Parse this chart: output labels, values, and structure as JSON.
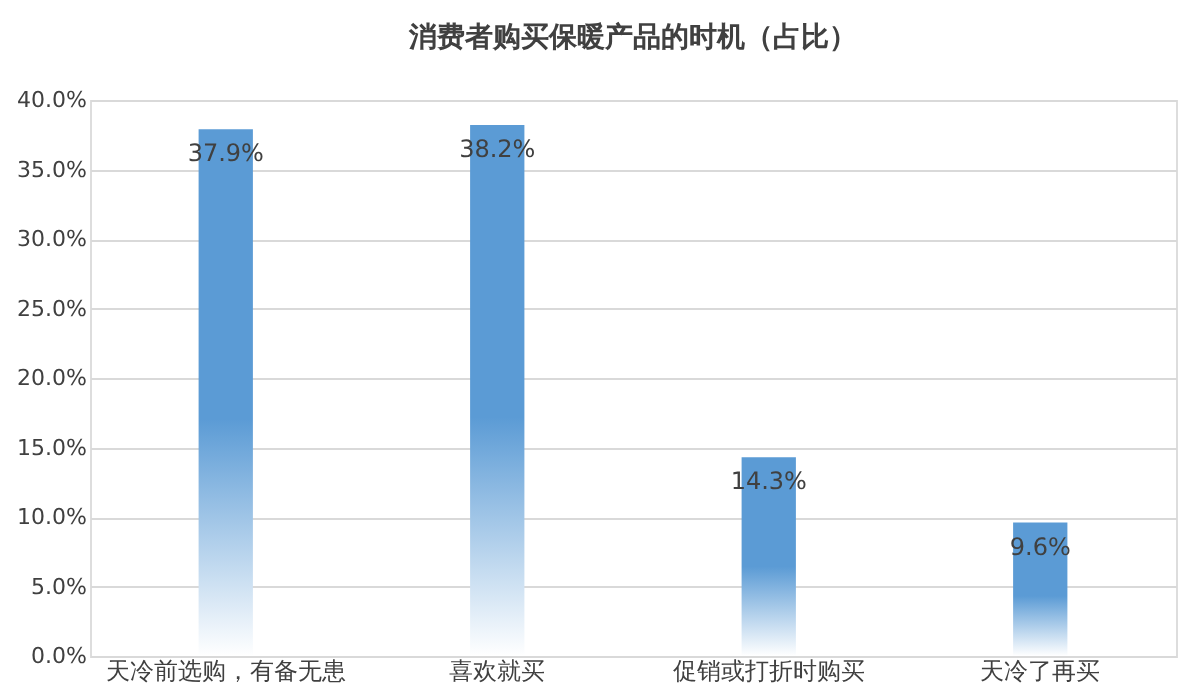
{
  "chart_data": {
    "type": "bar",
    "title": "消费者购买保暖产品的时机（占比）",
    "categories": [
      "天冷前选购，有备无患",
      "喜欢就买",
      "促销或打折时购买",
      "天冷了再买"
    ],
    "values": [
      37.9,
      38.2,
      14.3,
      9.6
    ],
    "value_labels": [
      "37.9%",
      "38.2%",
      "14.3%",
      "9.6%"
    ],
    "color": "#5b9bd5",
    "ylim": [
      0,
      40
    ],
    "yticks": [
      {
        "value": 0,
        "label": "0.0%"
      },
      {
        "value": 5,
        "label": "5.0%"
      },
      {
        "value": 10,
        "label": "10.0%"
      },
      {
        "value": 15,
        "label": "15.0%"
      },
      {
        "value": 20,
        "label": "20.0%"
      },
      {
        "value": 25,
        "label": "25.0%"
      },
      {
        "value": 30,
        "label": "30.0%"
      },
      {
        "value": 35,
        "label": "35.0%"
      },
      {
        "value": 40,
        "label": "40.0%"
      }
    ],
    "grid": "y"
  }
}
